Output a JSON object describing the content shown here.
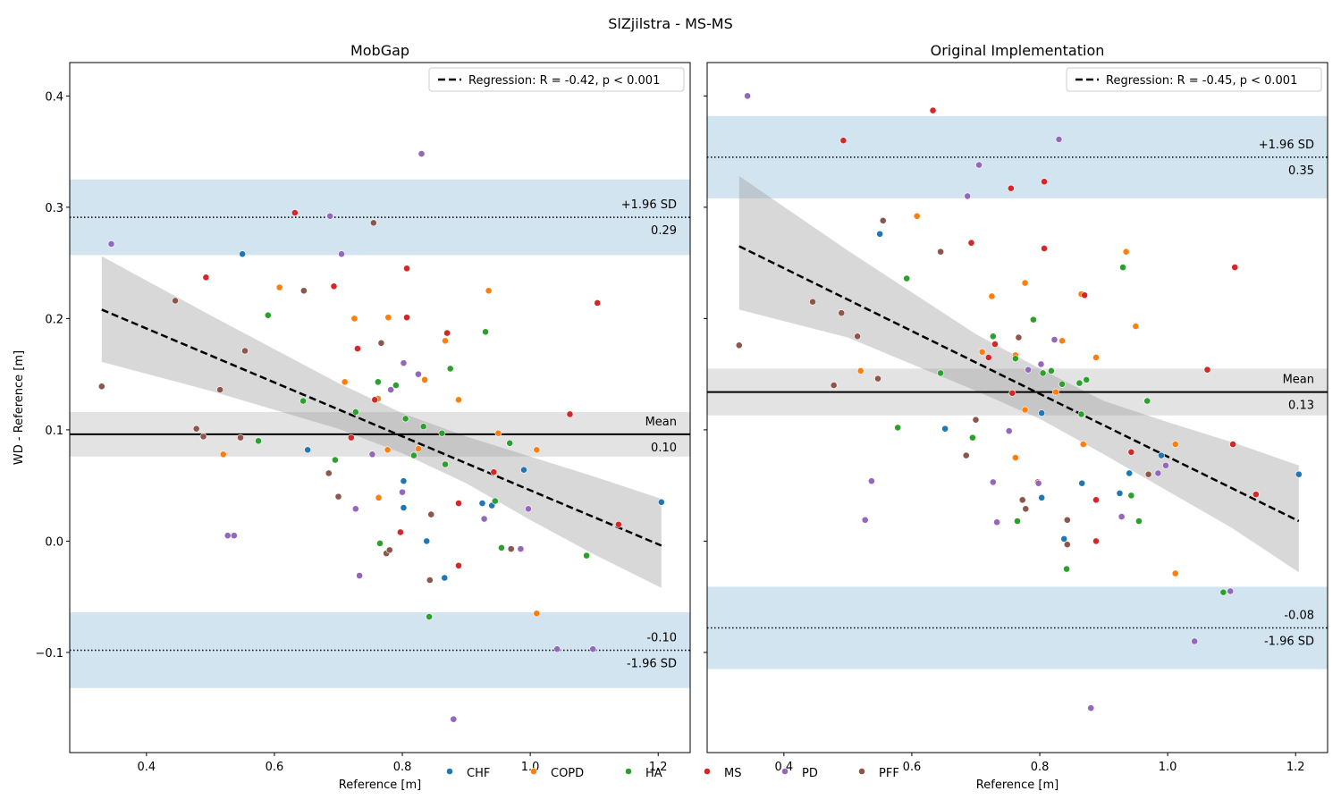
{
  "figure": {
    "suptitle": "SlZjilstra - MS-MS"
  },
  "legend": {
    "entries": [
      {
        "label": "CHF",
        "color": "#1f77b4"
      },
      {
        "label": "COPD",
        "color": "#ff7f0e"
      },
      {
        "label": "HA",
        "color": "#2ca02c"
      },
      {
        "label": "MS",
        "color": "#d62728"
      },
      {
        "label": "PD",
        "color": "#9467bd"
      },
      {
        "label": "PFF",
        "color": "#8c564b"
      }
    ]
  },
  "chart_data": [
    {
      "type": "scatter",
      "title": "MobGap",
      "xlabel": "Reference [m]",
      "ylabel": "WD - Reference [m]",
      "xlim": [
        0.28,
        1.25
      ],
      "ylim": [
        -0.19,
        0.43
      ],
      "xticks": [
        0.4,
        0.6,
        0.8,
        1.0,
        1.2
      ],
      "xtick_labels": [
        "0.4",
        "0.6",
        "0.8",
        "1.0",
        "1.2"
      ],
      "yticks": [
        -0.1,
        0.0,
        0.1,
        0.2,
        0.3,
        0.4
      ],
      "ytick_labels": [
        "−0.1",
        "0.0",
        "0.1",
        "0.2",
        "0.3",
        "0.4"
      ],
      "regression_label": "Regression: R = -0.42, p < 0.001",
      "regression": {
        "x0": 0.33,
        "y0": 0.208,
        "x1": 1.205,
        "y1": -0.004
      },
      "ci_band": {
        "x": [
          0.33,
          0.5,
          0.7,
          0.8,
          0.9,
          1.0,
          1.1,
          1.205
        ],
        "upper": [
          0.256,
          0.203,
          0.142,
          0.115,
          0.094,
          0.076,
          0.058,
          0.038
        ],
        "lower": [
          0.161,
          0.135,
          0.101,
          0.079,
          0.052,
          0.019,
          -0.012,
          -0.042
        ]
      },
      "mean": {
        "value": 0.096,
        "ci": [
          0.076,
          0.116
        ],
        "label": "Mean",
        "value_label": "0.10"
      },
      "upper_loa": {
        "value": 0.291,
        "ci": [
          0.257,
          0.325
        ],
        "label": "+1.96 SD",
        "value_label": "0.29"
      },
      "lower_loa": {
        "value": -0.098,
        "ci": [
          -0.132,
          -0.064
        ],
        "label": "-1.96 SD",
        "value_label": "-0.10"
      },
      "series": [
        {
          "name": "CHF",
          "color": "#1f77b4",
          "points": [
            [
              0.55,
              0.258
            ],
            [
              0.652,
              0.082
            ],
            [
              0.802,
              0.054
            ],
            [
              0.802,
              0.03
            ],
            [
              0.838,
              0.0
            ],
            [
              0.866,
              -0.033
            ],
            [
              0.925,
              0.034
            ],
            [
              0.94,
              0.032
            ],
            [
              0.99,
              0.064
            ],
            [
              1.205,
              0.035
            ]
          ]
        },
        {
          "name": "COPD",
          "color": "#ff7f0e",
          "points": [
            [
              0.52,
              0.078
            ],
            [
              0.608,
              0.228
            ],
            [
              0.71,
              0.143
            ],
            [
              0.725,
              0.2
            ],
            [
              0.762,
              0.128
            ],
            [
              0.763,
              0.039
            ],
            [
              0.777,
              0.082
            ],
            [
              0.778,
              0.201
            ],
            [
              0.825,
              0.083
            ],
            [
              0.835,
              0.145
            ],
            [
              0.867,
              0.18
            ],
            [
              0.888,
              0.127
            ],
            [
              0.935,
              0.225
            ],
            [
              0.95,
              0.097
            ],
            [
              1.01,
              0.082
            ],
            [
              1.01,
              -0.065
            ]
          ]
        },
        {
          "name": "HA",
          "color": "#2ca02c",
          "points": [
            [
              0.575,
              0.09
            ],
            [
              0.59,
              0.203
            ],
            [
              0.645,
              0.126
            ],
            [
              0.695,
              0.073
            ],
            [
              0.727,
              0.116
            ],
            [
              0.762,
              0.143
            ],
            [
              0.765,
              -0.002
            ],
            [
              0.79,
              0.14
            ],
            [
              0.805,
              0.11
            ],
            [
              0.818,
              0.077
            ],
            [
              0.833,
              0.103
            ],
            [
              0.842,
              -0.068
            ],
            [
              0.862,
              0.097
            ],
            [
              0.867,
              0.069
            ],
            [
              0.875,
              0.155
            ],
            [
              0.93,
              0.188
            ],
            [
              0.945,
              0.036
            ],
            [
              0.955,
              -0.006
            ],
            [
              0.968,
              0.088
            ],
            [
              1.088,
              -0.013
            ]
          ]
        },
        {
          "name": "MS",
          "color": "#d62728",
          "points": [
            [
              0.493,
              0.237
            ],
            [
              0.632,
              0.295
            ],
            [
              0.693,
              0.229
            ],
            [
              0.72,
              0.093
            ],
            [
              0.73,
              0.173
            ],
            [
              0.757,
              0.127
            ],
            [
              0.797,
              0.008
            ],
            [
              0.807,
              0.245
            ],
            [
              0.807,
              0.201
            ],
            [
              0.87,
              0.187
            ],
            [
              0.888,
              0.034
            ],
            [
              0.888,
              -0.022
            ],
            [
              0.943,
              0.062
            ],
            [
              1.062,
              0.114
            ],
            [
              1.105,
              0.214
            ],
            [
              1.138,
              0.015
            ]
          ]
        },
        {
          "name": "PD",
          "color": "#9467bd",
          "points": [
            [
              0.345,
              0.267
            ],
            [
              0.527,
              0.005
            ],
            [
              0.537,
              0.005
            ],
            [
              0.687,
              0.292
            ],
            [
              0.705,
              0.258
            ],
            [
              0.727,
              0.029
            ],
            [
              0.733,
              -0.031
            ],
            [
              0.753,
              0.078
            ],
            [
              0.782,
              0.136
            ],
            [
              0.8,
              0.044
            ],
            [
              0.802,
              0.16
            ],
            [
              0.825,
              0.15
            ],
            [
              0.83,
              0.348
            ],
            [
              0.88,
              -0.16
            ],
            [
              0.928,
              0.02
            ],
            [
              0.985,
              -0.007
            ],
            [
              0.997,
              0.029
            ],
            [
              1.042,
              -0.097
            ],
            [
              1.098,
              -0.097
            ]
          ]
        },
        {
          "name": "PFF",
          "color": "#8c564b",
          "points": [
            [
              0.33,
              0.139
            ],
            [
              0.445,
              0.216
            ],
            [
              0.478,
              0.101
            ],
            [
              0.489,
              0.094
            ],
            [
              0.515,
              0.136
            ],
            [
              0.547,
              0.093
            ],
            [
              0.554,
              0.171
            ],
            [
              0.646,
              0.225
            ],
            [
              0.685,
              0.061
            ],
            [
              0.7,
              0.04
            ],
            [
              0.755,
              0.286
            ],
            [
              0.767,
              0.178
            ],
            [
              0.775,
              -0.011
            ],
            [
              0.78,
              -0.008
            ],
            [
              0.843,
              -0.035
            ],
            [
              0.845,
              0.024
            ],
            [
              0.97,
              -0.007
            ]
          ]
        }
      ]
    },
    {
      "type": "scatter",
      "title": "Original Implementation",
      "xlabel": "Reference [m]",
      "ylabel": "",
      "xlim": [
        0.28,
        1.25
      ],
      "ylim": [
        -0.19,
        0.43
      ],
      "xticks": [
        0.4,
        0.6,
        0.8,
        1.0,
        1.2
      ],
      "xtick_labels": [
        "0.4",
        "0.6",
        "0.8",
        "1.0",
        "1.2"
      ],
      "yticks": [
        -0.1,
        0.0,
        0.1,
        0.2,
        0.3,
        0.4
      ],
      "ytick_labels": [],
      "regression_label": "Regression: R = -0.45, p < 0.001",
      "regression": {
        "x0": 0.33,
        "y0": 0.265,
        "x1": 1.205,
        "y1": 0.018
      },
      "ci_band": {
        "x": [
          0.33,
          0.5,
          0.7,
          0.8,
          0.9,
          1.0,
          1.1,
          1.205
        ],
        "upper": [
          0.328,
          0.261,
          0.186,
          0.155,
          0.126,
          0.107,
          0.089,
          0.068
        ],
        "lower": [
          0.208,
          0.183,
          0.135,
          0.11,
          0.078,
          0.045,
          0.012,
          -0.028
        ]
      },
      "mean": {
        "value": 0.134,
        "ci": [
          0.113,
          0.155
        ],
        "label": "Mean",
        "value_label": "0.13"
      },
      "upper_loa": {
        "value": 0.345,
        "ci": [
          0.308,
          0.382
        ],
        "label": "+1.96 SD",
        "value_label": "0.35"
      },
      "lower_loa": {
        "value": -0.078,
        "ci": [
          -0.115,
          -0.041
        ],
        "label": "-1.96 SD",
        "value_label": "-0.08"
      },
      "series": [
        {
          "name": "CHF",
          "color": "#1f77b4",
          "points": [
            [
              0.55,
              0.276
            ],
            [
              0.652,
              0.101
            ],
            [
              0.803,
              0.115
            ],
            [
              0.803,
              0.039
            ],
            [
              0.838,
              0.002
            ],
            [
              0.866,
              0.052
            ],
            [
              0.925,
              0.043
            ],
            [
              0.94,
              0.061
            ],
            [
              0.99,
              0.077
            ],
            [
              1.205,
              0.06
            ]
          ]
        },
        {
          "name": "COPD",
          "color": "#ff7f0e",
          "points": [
            [
              0.52,
              0.153
            ],
            [
              0.608,
              0.292
            ],
            [
              0.71,
              0.17
            ],
            [
              0.725,
              0.22
            ],
            [
              0.762,
              0.167
            ],
            [
              0.762,
              0.075
            ],
            [
              0.777,
              0.232
            ],
            [
              0.777,
              0.118
            ],
            [
              0.825,
              0.134
            ],
            [
              0.835,
              0.18
            ],
            [
              0.865,
              0.222
            ],
            [
              0.868,
              0.087
            ],
            [
              0.888,
              0.165
            ],
            [
              0.935,
              0.26
            ],
            [
              0.95,
              0.193
            ],
            [
              1.012,
              0.087
            ],
            [
              1.012,
              -0.029
            ]
          ]
        },
        {
          "name": "HA",
          "color": "#2ca02c",
          "points": [
            [
              0.578,
              0.102
            ],
            [
              0.592,
              0.236
            ],
            [
              0.645,
              0.151
            ],
            [
              0.695,
              0.093
            ],
            [
              0.727,
              0.184
            ],
            [
              0.762,
              0.164
            ],
            [
              0.765,
              0.018
            ],
            [
              0.79,
              0.199
            ],
            [
              0.805,
              0.151
            ],
            [
              0.818,
              0.153
            ],
            [
              0.835,
              0.141
            ],
            [
              0.842,
              -0.025
            ],
            [
              0.862,
              0.142
            ],
            [
              0.865,
              0.114
            ],
            [
              0.873,
              0.145
            ],
            [
              0.93,
              0.246
            ],
            [
              0.943,
              0.041
            ],
            [
              0.955,
              0.018
            ],
            [
              0.968,
              0.126
            ],
            [
              1.087,
              -0.046
            ]
          ]
        },
        {
          "name": "MS",
          "color": "#d62728",
          "points": [
            [
              0.493,
              0.36
            ],
            [
              0.633,
              0.387
            ],
            [
              0.693,
              0.268
            ],
            [
              0.72,
              0.165
            ],
            [
              0.73,
              0.177
            ],
            [
              0.755,
              0.317
            ],
            [
              0.757,
              0.133
            ],
            [
              0.797,
              0.053
            ],
            [
              0.807,
              0.323
            ],
            [
              0.807,
              0.263
            ],
            [
              0.87,
              0.221
            ],
            [
              0.888,
              0.037
            ],
            [
              0.888,
              0.0
            ],
            [
              0.943,
              0.08
            ],
            [
              1.062,
              0.154
            ],
            [
              1.105,
              0.246
            ],
            [
              1.102,
              0.087
            ],
            [
              1.138,
              0.042
            ]
          ]
        },
        {
          "name": "PD",
          "color": "#9467bd",
          "points": [
            [
              0.343,
              0.4
            ],
            [
              0.527,
              0.019
            ],
            [
              0.537,
              0.054
            ],
            [
              0.687,
              0.31
            ],
            [
              0.705,
              0.338
            ],
            [
              0.727,
              0.053
            ],
            [
              0.733,
              0.017
            ],
            [
              0.752,
              0.099
            ],
            [
              0.782,
              0.154
            ],
            [
              0.798,
              0.052
            ],
            [
              0.802,
              0.159
            ],
            [
              0.823,
              0.181
            ],
            [
              0.83,
              0.361
            ],
            [
              0.88,
              -0.15
            ],
            [
              0.928,
              0.022
            ],
            [
              0.985,
              0.061
            ],
            [
              0.997,
              0.068
            ],
            [
              1.042,
              -0.09
            ],
            [
              1.098,
              -0.045
            ]
          ]
        },
        {
          "name": "PFF",
          "color": "#8c564b",
          "points": [
            [
              0.33,
              0.176
            ],
            [
              0.445,
              0.215
            ],
            [
              0.478,
              0.14
            ],
            [
              0.49,
              0.205
            ],
            [
              0.515,
              0.184
            ],
            [
              0.547,
              0.146
            ],
            [
              0.555,
              0.288
            ],
            [
              0.645,
              0.26
            ],
            [
              0.685,
              0.077
            ],
            [
              0.7,
              0.109
            ],
            [
              0.767,
              0.183
            ],
            [
              0.773,
              0.037
            ],
            [
              0.778,
              0.029
            ],
            [
              0.843,
              0.019
            ],
            [
              0.843,
              -0.003
            ],
            [
              0.97,
              0.06
            ]
          ]
        }
      ]
    }
  ]
}
